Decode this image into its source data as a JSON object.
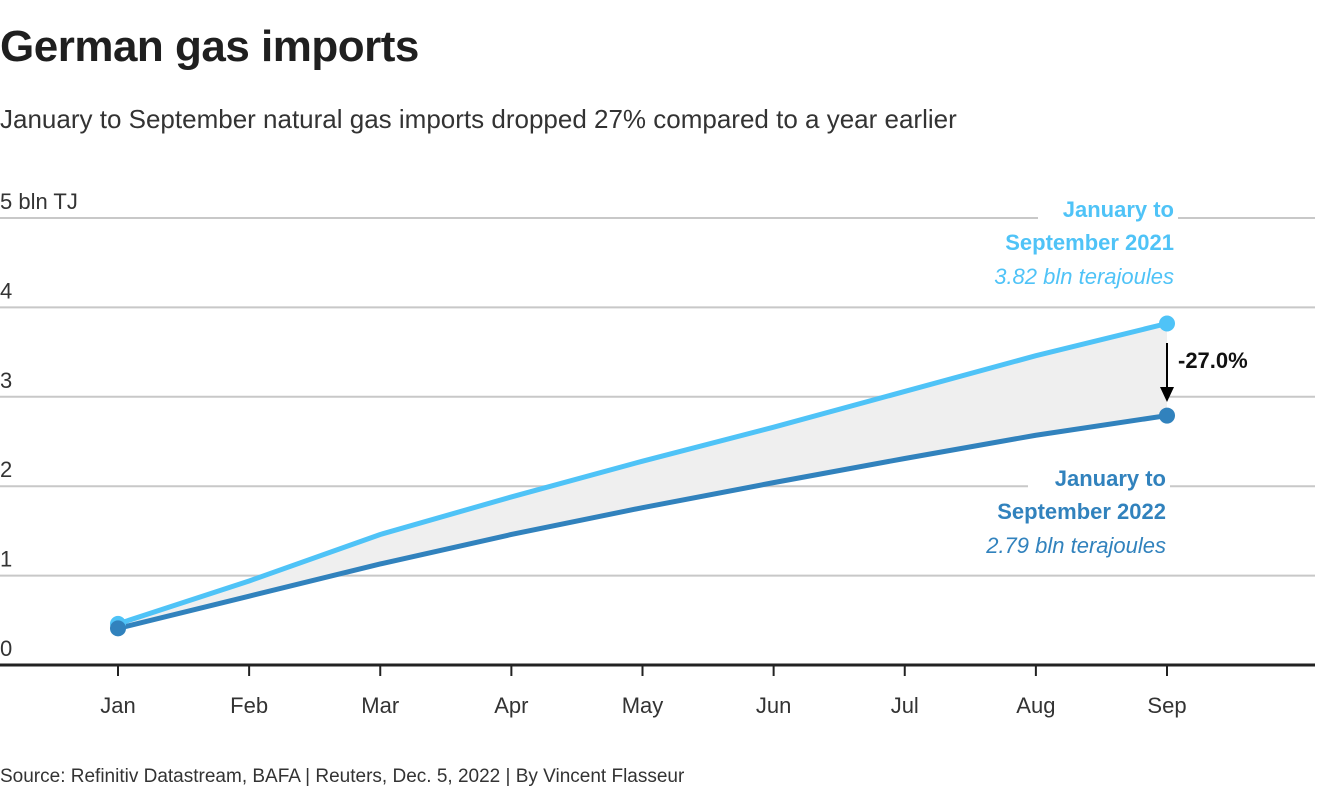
{
  "header": {
    "title": "German gas imports",
    "subtitle": "January to September natural gas imports dropped 27% compared to a year earlier"
  },
  "footer": {
    "source": "Source: Refinitiv Datastream, BAFA | Reuters, Dec. 5, 2022 | By Vincent Flasseur"
  },
  "colors": {
    "series_2021": "#4fc3f7",
    "series_2022": "#3182bd",
    "fill": "#efefef",
    "grid": "#c8c8c8",
    "axis": "#222222"
  },
  "chart_data": {
    "type": "line",
    "title": "German gas imports",
    "subtitle": "January to September natural gas imports dropped 27% compared to a year earlier",
    "xlabel": "",
    "ylabel": "bln TJ",
    "x": [
      "Jan",
      "Feb",
      "Mar",
      "Apr",
      "May",
      "Jun",
      "Jul",
      "Aug",
      "Sep"
    ],
    "ylim": [
      0,
      5
    ],
    "yticks": [
      0,
      1,
      2,
      3,
      4,
      5
    ],
    "ytick_labels": [
      "0",
      "1",
      "2",
      "3",
      "4",
      "5 bln TJ"
    ],
    "grid": true,
    "series": [
      {
        "name": "January to September 2021",
        "values": [
          0.46,
          0.94,
          1.46,
          1.88,
          2.28,
          2.66,
          3.06,
          3.46,
          3.82
        ]
      },
      {
        "name": "January to September 2022",
        "values": [
          0.41,
          0.77,
          1.13,
          1.46,
          1.76,
          2.04,
          2.31,
          2.57,
          2.79
        ]
      }
    ],
    "annotations": {
      "label_2021_line1": "January to",
      "label_2021_line2": "September 2021",
      "label_2021_value": "3.82 bln terajoules",
      "label_2022_line1": "January to",
      "label_2022_line2": "September 2022",
      "label_2022_value": "2.79 bln terajoules",
      "change": "-27.0%"
    }
  }
}
